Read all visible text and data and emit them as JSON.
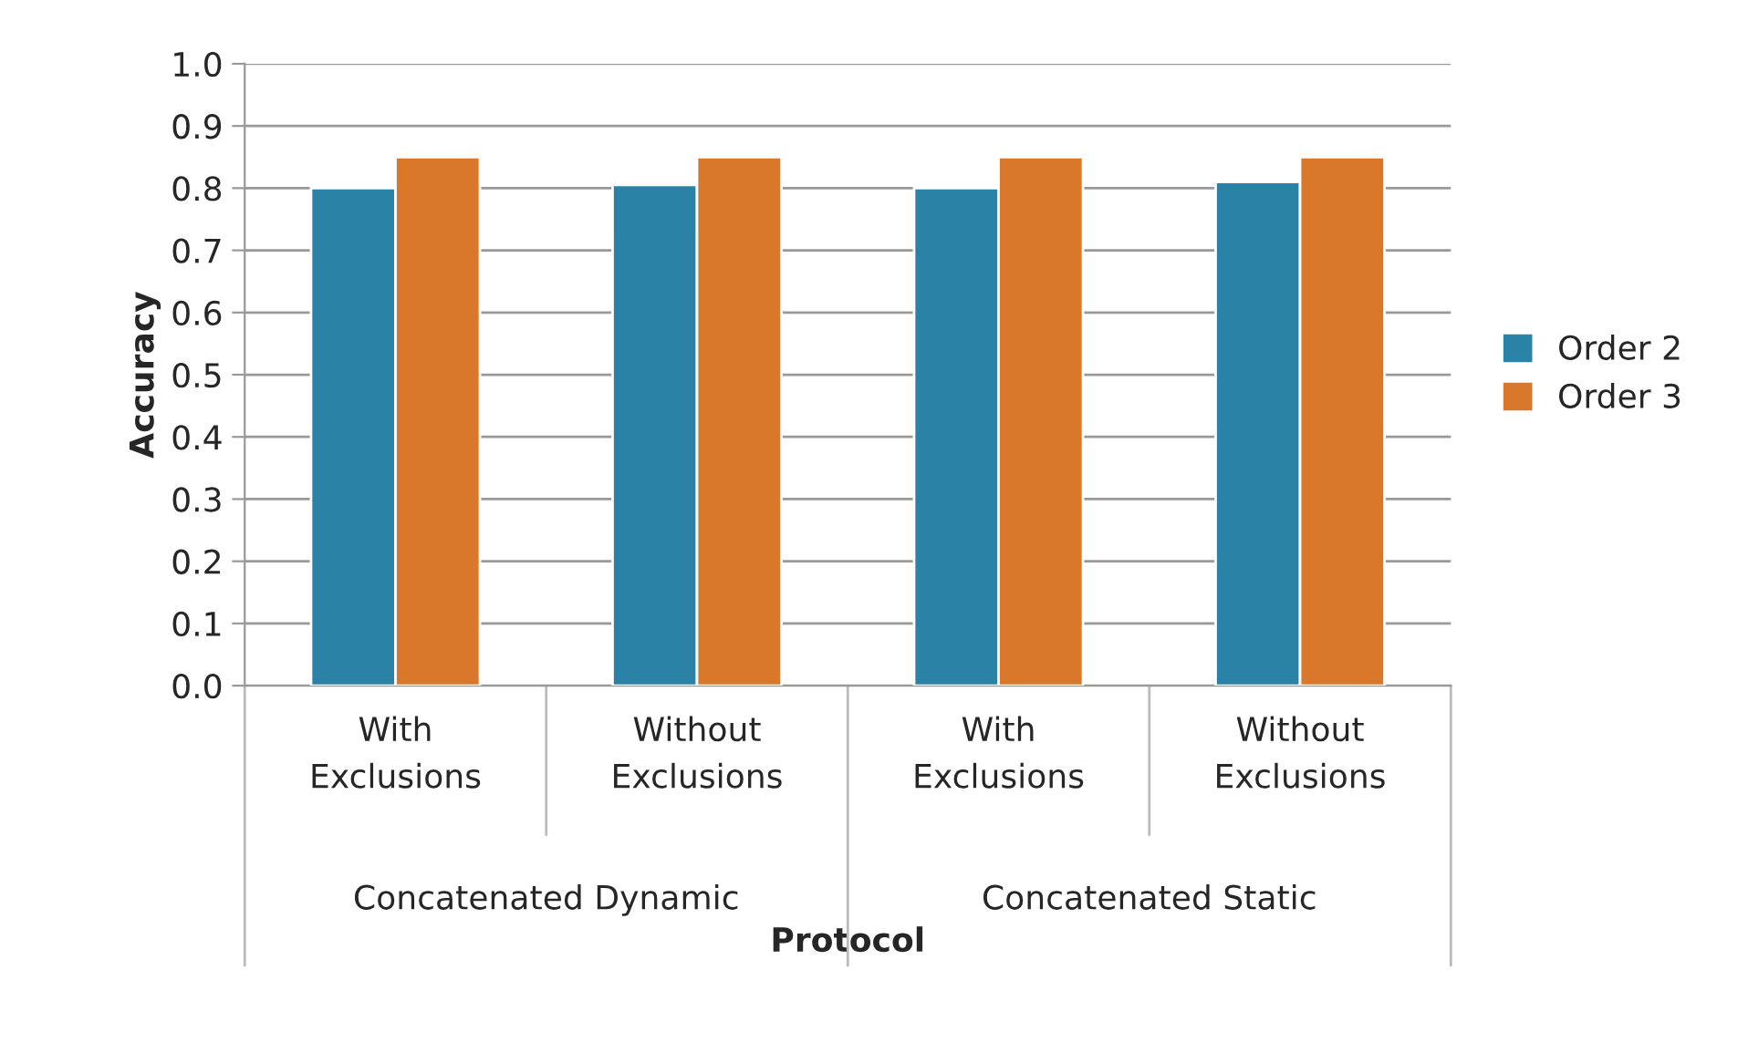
{
  "chart_data": {
    "type": "bar",
    "xlabel": "Protocol",
    "ylabel": "Accuracy",
    "categories": [
      "With Exclusions",
      "Without Exclusions",
      "With Exclusions",
      "Without Exclusions"
    ],
    "series": [
      {
        "name": "Order 2",
        "color": "#2a83a6",
        "values": [
          0.8,
          0.805,
          0.8,
          0.81
        ]
      },
      {
        "name": "Order 3",
        "color": "#d9782a",
        "values": [
          0.85,
          0.85,
          0.85,
          0.85
        ]
      }
    ],
    "annotations": [
      "Concatenated Dynamic",
      "Concatenated Static"
    ],
    "ylim": [
      0,
      1
    ],
    "yticks": [
      {
        "value": 0,
        "label": "0.0"
      },
      0.1,
      0.2,
      0.3,
      0.4,
      0.5,
      0.6,
      0.7,
      0.8,
      0.9,
      {
        "value": 1,
        "label": "1.0"
      }
    ],
    "grid": "y",
    "legend": "right"
  }
}
